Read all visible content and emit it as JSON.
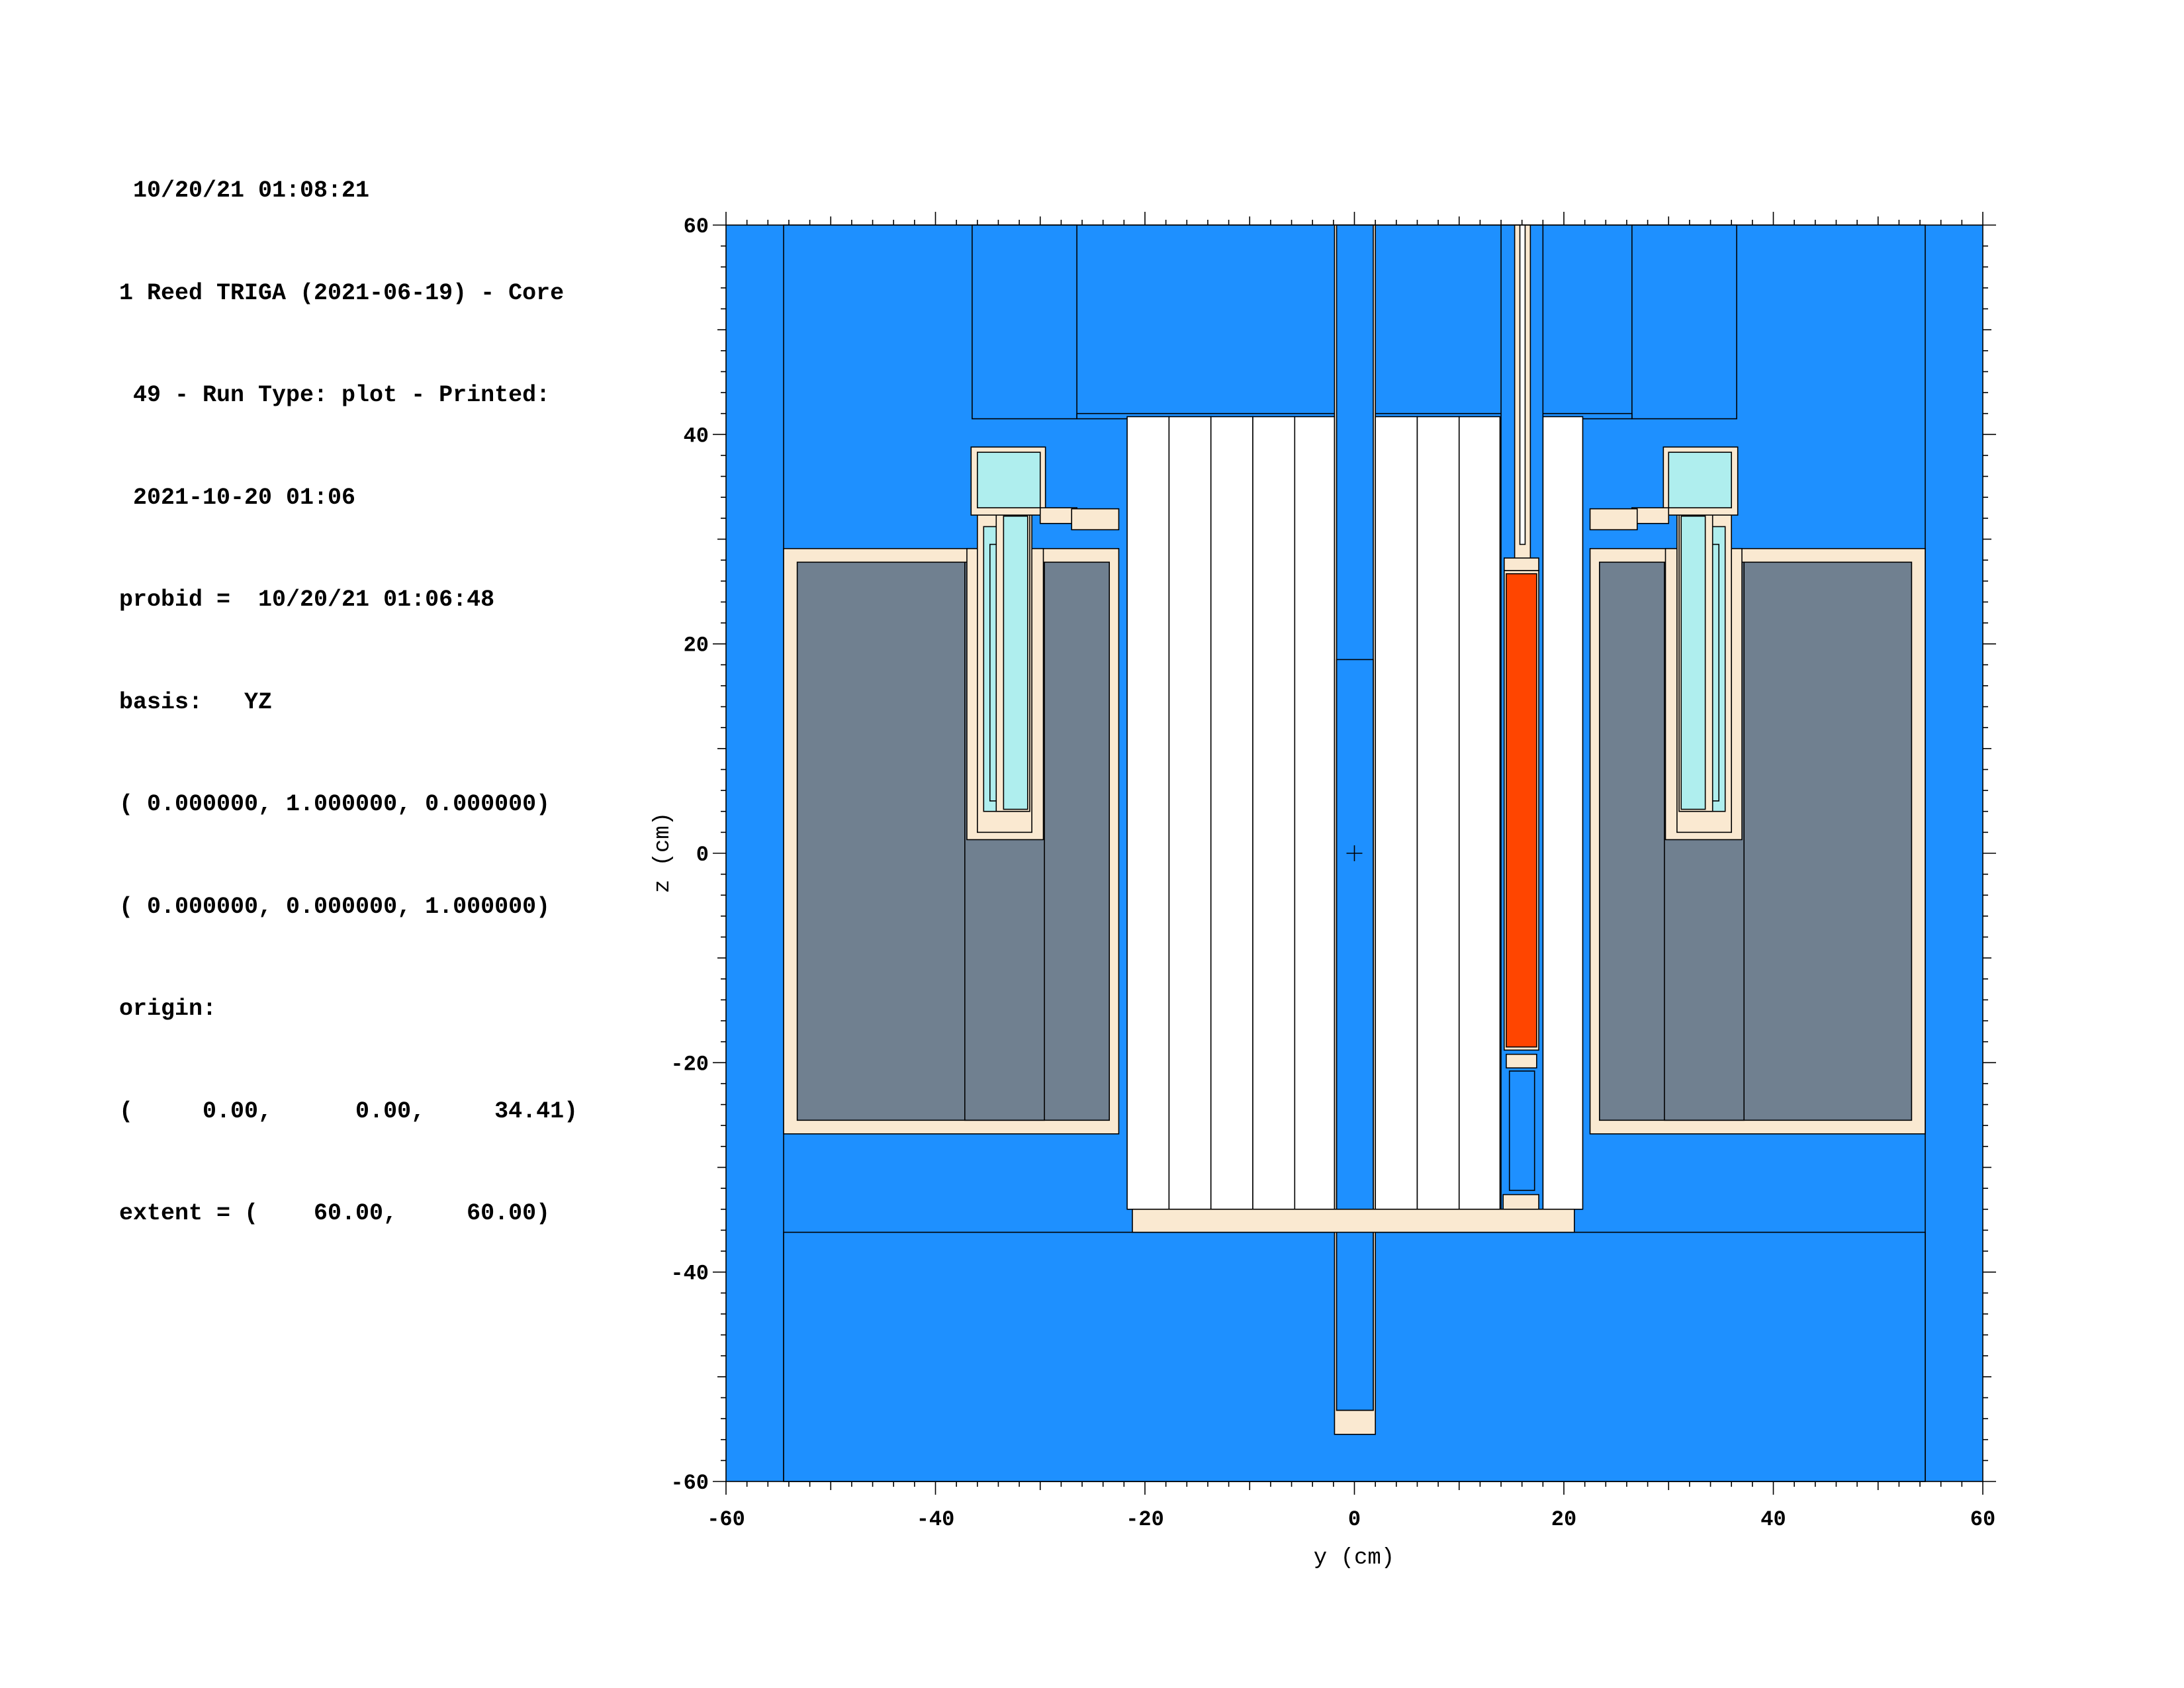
{
  "header_lines": [
    " 10/20/21 01:08:21",
    "1 Reed TRIGA (2021-06-19) - Core",
    " 49 - Run Type: plot - Printed:",
    " 2021-10-20 01:06",
    "probid =  10/20/21 01:06:48",
    "basis:   YZ",
    "( 0.000000, 1.000000, 0.000000)",
    "( 0.000000, 0.000000, 1.000000)",
    "origin:",
    "(     0.00,      0.00,     34.41)",
    "extent = (    60.00,     60.00)"
  ],
  "axes": {
    "xlabel": "y (cm)",
    "ylabel": "z (cm)",
    "xlim": [
      -60,
      60
    ],
    "ylim": [
      -60,
      60
    ],
    "xticks": [
      "-60",
      "-40",
      "-20",
      "0",
      "20",
      "40",
      "60"
    ],
    "yticks": [
      "60",
      "40",
      "20",
      "0",
      "-20",
      "-40",
      "-60"
    ]
  },
  "colors": {
    "water": "#1e90ff",
    "graphite_reflector": "#708090",
    "cladding": "#fae9d1",
    "fuel_element": "#ffffff",
    "highlighted_fuel": "#ff4500",
    "cavity": "#afeeee",
    "outline": "#000000"
  }
}
